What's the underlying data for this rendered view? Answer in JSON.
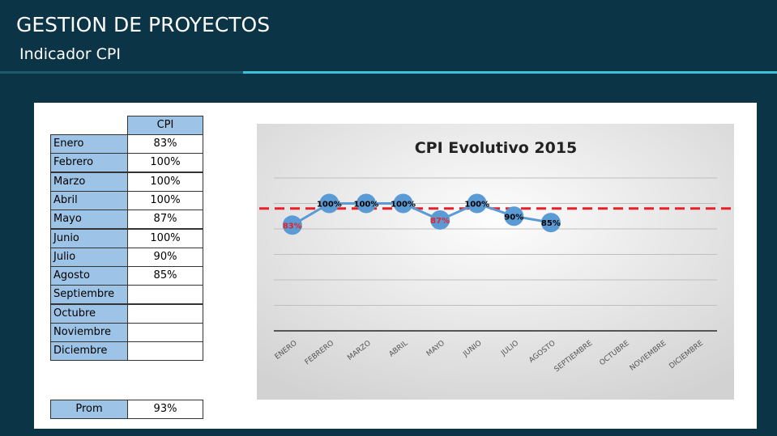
{
  "header": {
    "title": "GESTION DE PROYECTOS",
    "subtitle": "Indicador CPI"
  },
  "table": {
    "column": "CPI",
    "rows": [
      {
        "month": "Enero",
        "cpi": "83%"
      },
      {
        "month": "Febrero",
        "cpi": "100%"
      },
      {
        "month": "Marzo",
        "cpi": "100%"
      },
      {
        "month": "Abril",
        "cpi": "100%"
      },
      {
        "month": "Mayo",
        "cpi": "87%"
      },
      {
        "month": "Junio",
        "cpi": "100%"
      },
      {
        "month": "Julio",
        "cpi": "90%"
      },
      {
        "month": "Agosto",
        "cpi": "85%"
      },
      {
        "month": "Septiembre"
      },
      {
        "month": "Octubre"
      },
      {
        "month": "Noviembre"
      },
      {
        "month": "Diciembre"
      }
    ],
    "average": {
      "label": "Prom",
      "value": "93%"
    }
  },
  "chart_data": {
    "type": "line",
    "title": "CPI Evolutivo 2015",
    "categories": [
      "ENERO",
      "FEBRERO",
      "MARZO",
      "ABRIL",
      "MAYO",
      "JUNIO",
      "JULIO",
      "AGOSTO",
      "SEPTIEMBRE",
      "OCTUBRE",
      "NOVIEMBRE",
      "DICIEMBRE"
    ],
    "values": [
      83,
      100,
      100,
      100,
      87,
      100,
      90,
      85,
      null,
      null,
      null,
      null
    ],
    "value_labels": [
      "83%",
      "100%",
      "100%",
      "100%",
      "87%",
      "100%",
      "90%",
      "85%",
      null,
      null,
      null,
      null
    ],
    "label_colors": [
      "#e8202a",
      "#000000",
      "#000000",
      "#000000",
      "#e8202a",
      "#000000",
      "#000000",
      "#000000",
      null,
      null,
      null,
      null
    ],
    "color": "#5b9bd5",
    "target": 96,
    "target_color": "#e8202a",
    "ylim": [
      0,
      120
    ],
    "yticks": [
      0,
      20,
      40,
      60,
      80,
      100,
      120
    ],
    "grid": true
  }
}
